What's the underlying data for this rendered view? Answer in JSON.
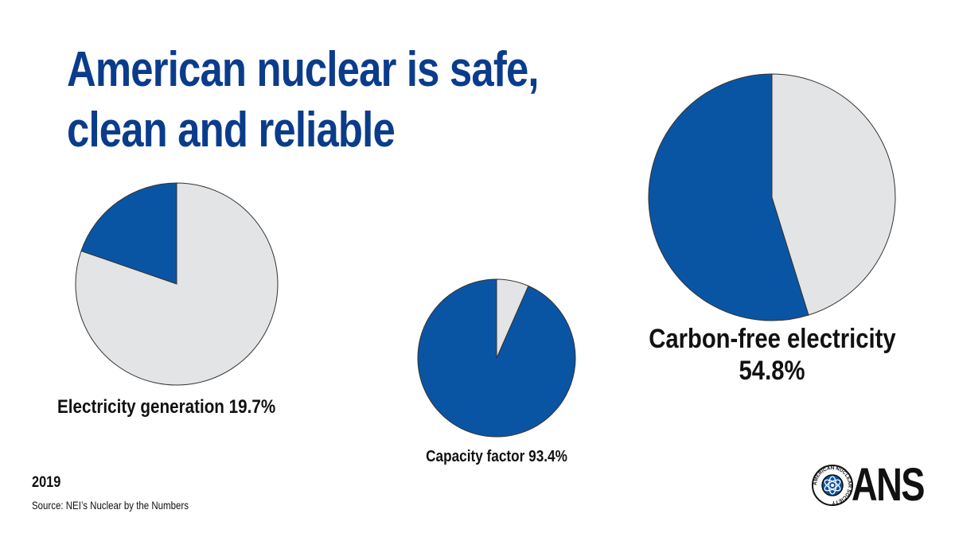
{
  "title": {
    "line1": "American nuclear is safe,",
    "line2": "clean and reliable"
  },
  "colors": {
    "nuclear": "#0a55a3",
    "rest": "#e3e4e6",
    "title": "#0b3c8c"
  },
  "chart_data": [
    {
      "type": "pie",
      "label_line1": "Electricity generation 19.7%",
      "label_line2": "",
      "slices": [
        {
          "value": 19.7,
          "color": "#0a55a3"
        },
        {
          "value": 80.3,
          "color": "#e3e4e6"
        }
      ]
    },
    {
      "type": "pie",
      "label_line1": "Capacity factor 93.4%",
      "label_line2": "",
      "slices": [
        {
          "value": 93.4,
          "color": "#0a55a3"
        },
        {
          "value": 6.6,
          "color": "#e3e4e6"
        }
      ]
    },
    {
      "type": "pie",
      "label_line1": "Carbon-free electricity",
      "label_line2": "54.8%",
      "slices": [
        {
          "value": 54.8,
          "color": "#0a55a3"
        },
        {
          "value": 45.2,
          "color": "#e3e4e6"
        }
      ]
    }
  ],
  "footer": {
    "year": "2019",
    "source": "Source: NEI’s Nuclear by the Numbers"
  },
  "logo": {
    "text": "ANS",
    "seal_text": "AMERICAN NUCLEAR SOCIETY"
  }
}
